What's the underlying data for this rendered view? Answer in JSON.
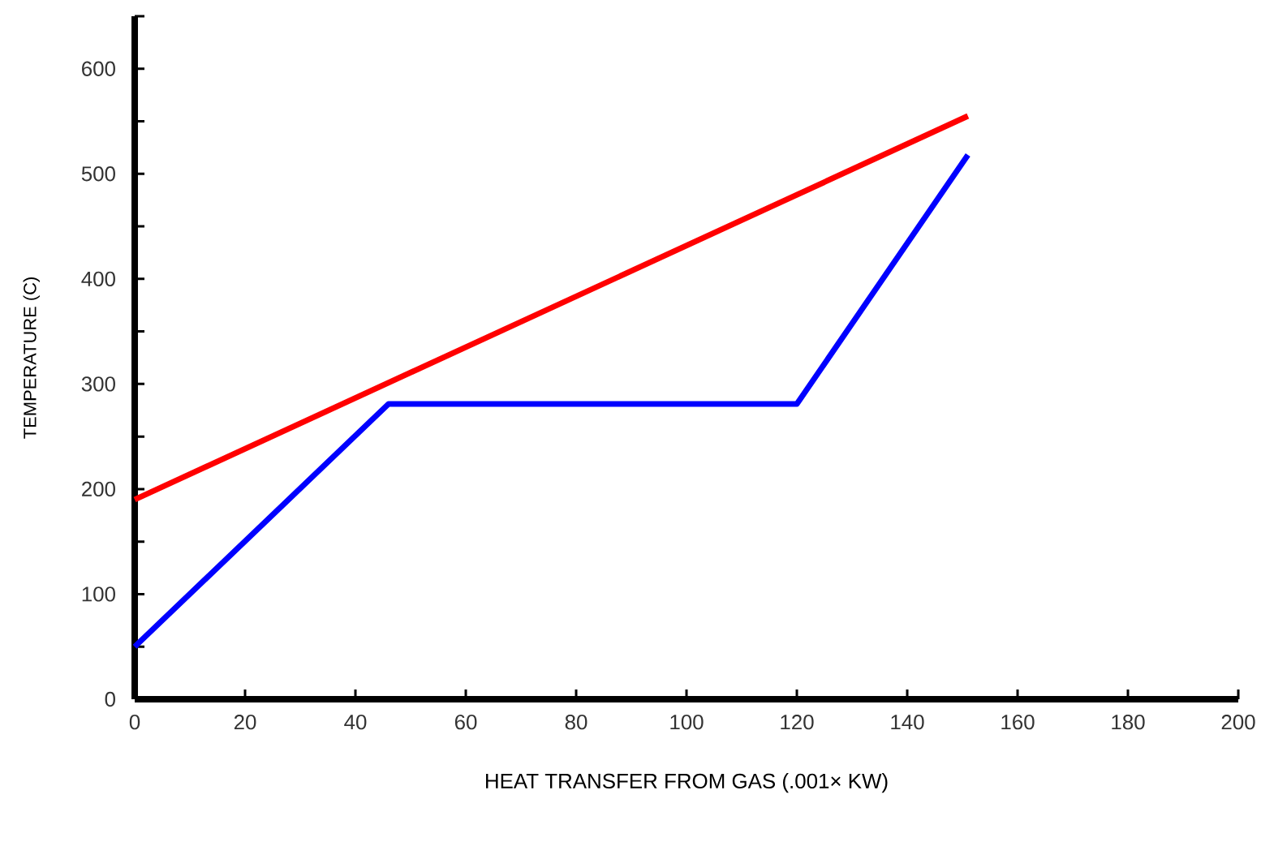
{
  "chart_data": {
    "type": "line",
    "xlabel": "HEAT TRANSFER FROM GAS (.001× KW)",
    "ylabel": "TEMPERATURE (C)",
    "xlim": [
      0,
      200
    ],
    "ylim": [
      0,
      650
    ],
    "xticks": [
      0,
      20,
      40,
      60,
      80,
      100,
      120,
      140,
      160,
      180,
      200
    ],
    "yticks": [
      0,
      {
        "value": 50,
        "label": null
      },
      100,
      {
        "value": 150,
        "label": null
      },
      200,
      {
        "value": 250,
        "label": null
      },
      300,
      {
        "value": 350,
        "label": null
      },
      400,
      {
        "value": 450,
        "label": null
      },
      500,
      {
        "value": 550,
        "label": null
      },
      600,
      {
        "value": 650,
        "label": null
      }
    ],
    "grid": false,
    "marker": "none",
    "line_style": "solid",
    "series": [
      {
        "color": "#ff0000",
        "x": [
          0,
          151
        ],
        "values": [
          190,
          555
        ]
      },
      {
        "color": "#0000ff",
        "x": [
          0,
          46,
          120,
          151
        ],
        "values": [
          50,
          281,
          281,
          518
        ]
      }
    ]
  }
}
